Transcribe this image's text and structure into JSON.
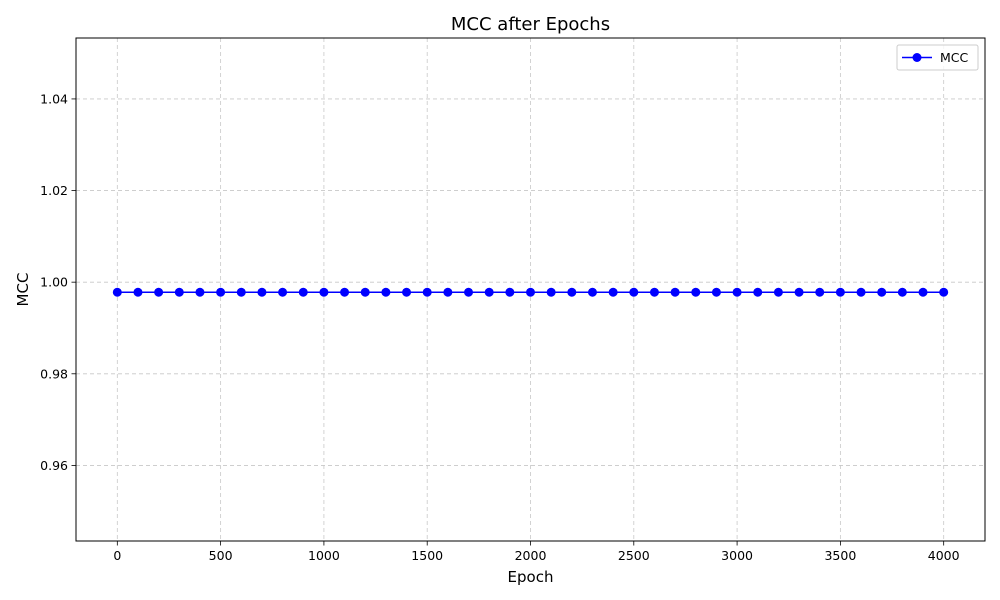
{
  "chart_data": {
    "type": "line",
    "title": "MCC after Epochs",
    "xlabel": "Epoch",
    "ylabel": "MCC",
    "xlim": [
      -200,
      4200
    ],
    "ylim": [
      0.9435,
      1.0533
    ],
    "x_ticks": [
      0,
      500,
      1000,
      1500,
      2000,
      2500,
      3000,
      3500,
      4000
    ],
    "x_tick_labels": [
      "0",
      "500",
      "1000",
      "1500",
      "2000",
      "2500",
      "3000",
      "3500",
      "4000"
    ],
    "y_ticks": [
      0.96,
      0.98,
      1.0,
      1.02,
      1.04
    ],
    "y_tick_labels": [
      "0.96",
      "0.98",
      "1.00",
      "1.02",
      "1.04"
    ],
    "grid": true,
    "legend_position": "top-right",
    "series": [
      {
        "name": "MCC",
        "color": "#0000ff",
        "marker": "circle",
        "x": [
          0,
          100,
          200,
          300,
          400,
          500,
          600,
          700,
          800,
          900,
          1000,
          1100,
          1200,
          1300,
          1400,
          1500,
          1600,
          1700,
          1800,
          1900,
          2000,
          2100,
          2200,
          2300,
          2400,
          2500,
          2600,
          2700,
          2800,
          2900,
          3000,
          3100,
          3200,
          3300,
          3400,
          3500,
          3600,
          3700,
          3800,
          3900,
          4000
        ],
        "values": [
          0.9978,
          0.9978,
          0.9978,
          0.9978,
          0.9978,
          0.9978,
          0.9978,
          0.9978,
          0.9978,
          0.9978,
          0.9978,
          0.9978,
          0.9978,
          0.9978,
          0.9978,
          0.9978,
          0.9978,
          0.9978,
          0.9978,
          0.9978,
          0.9978,
          0.9978,
          0.9978,
          0.9978,
          0.9978,
          0.9978,
          0.9978,
          0.9978,
          0.9978,
          0.9978,
          0.9978,
          0.9978,
          0.9978,
          0.9978,
          0.9978,
          0.9978,
          0.9978,
          0.9978,
          0.9978,
          0.9978,
          0.9978
        ]
      }
    ]
  }
}
